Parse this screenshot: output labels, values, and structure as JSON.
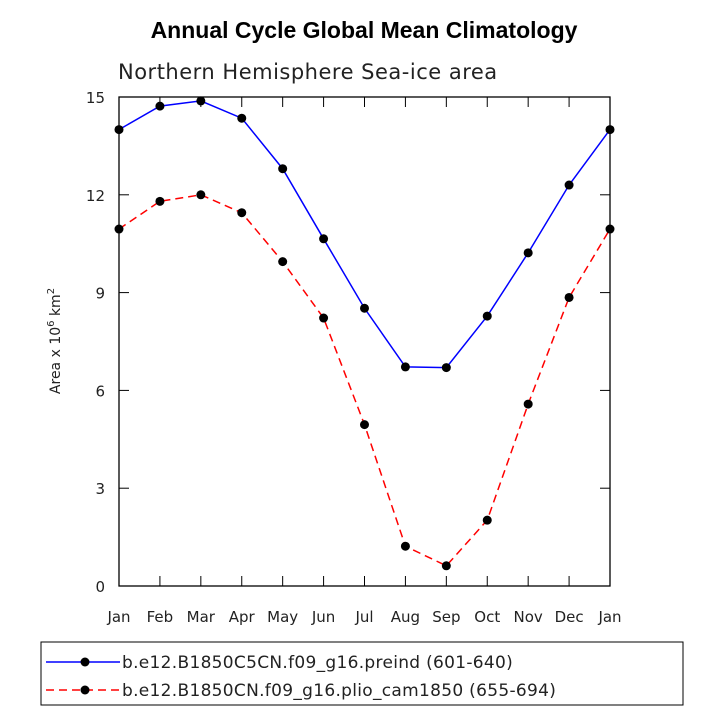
{
  "chart_data": {
    "type": "line",
    "title": "Annual Cycle Global Mean Climatology",
    "subtitle": "Northern Hemisphere Sea-ice area",
    "ylabel_prefix": "Area x 10",
    "ylabel_exp": "6",
    "ylabel_unit": " km",
    "ylabel_unit_exp": "2",
    "ylim": [
      0,
      15
    ],
    "yticks": [
      "0",
      "3",
      "6",
      "9",
      "12",
      "15"
    ],
    "ytick_values": [
      0,
      3,
      6,
      9,
      12,
      15
    ],
    "categories": [
      "Jan",
      "Feb",
      "Mar",
      "Apr",
      "May",
      "Jun",
      "Jul",
      "Aug",
      "Sep",
      "Oct",
      "Nov",
      "Dec",
      "Jan"
    ],
    "series": [
      {
        "name": "b.e12.B1850C5CN.f09_g16.preind (601-640)",
        "color": "#0000ff",
        "dash": "solid",
        "values": [
          14.0,
          14.72,
          14.88,
          14.35,
          12.8,
          10.65,
          8.52,
          6.72,
          6.7,
          8.28,
          10.22,
          12.3,
          14.0
        ]
      },
      {
        "name": "b.e12.B1850CN.f09_g16.plio_cam1850 (655-694)",
        "color": "#ff0000",
        "dash": "dashed",
        "values": [
          10.95,
          11.8,
          12.0,
          11.45,
          9.95,
          8.22,
          4.95,
          1.22,
          0.62,
          2.02,
          5.58,
          8.85,
          10.95
        ]
      }
    ]
  }
}
